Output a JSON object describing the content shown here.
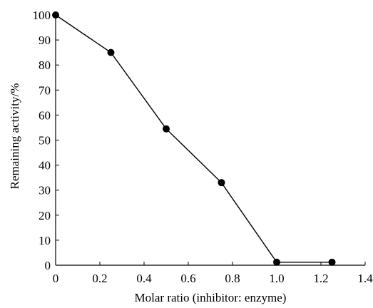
{
  "chart_data": {
    "type": "line",
    "title": "",
    "xlabel": "Molar ratio (inhibitor: enzyme)",
    "ylabel": "Remaining activity/%",
    "xlim": [
      0,
      1.4
    ],
    "ylim": [
      0,
      100
    ],
    "x_ticks": [
      "0",
      "0.2",
      "0.4",
      "0.6",
      "0.8",
      "1.0",
      "1.2",
      "1.4"
    ],
    "y_ticks": [
      "0",
      "10",
      "20",
      "30",
      "40",
      "50",
      "60",
      "70",
      "80",
      "90",
      "100"
    ],
    "grid": false,
    "legend": "none",
    "series": [
      {
        "x": [
          0,
          0.25,
          0.5,
          0.75,
          1.0,
          1.25
        ],
        "y": [
          100,
          85,
          54.5,
          33,
          1.2,
          1.2
        ],
        "marker": "circle",
        "color": "#000000"
      }
    ]
  }
}
